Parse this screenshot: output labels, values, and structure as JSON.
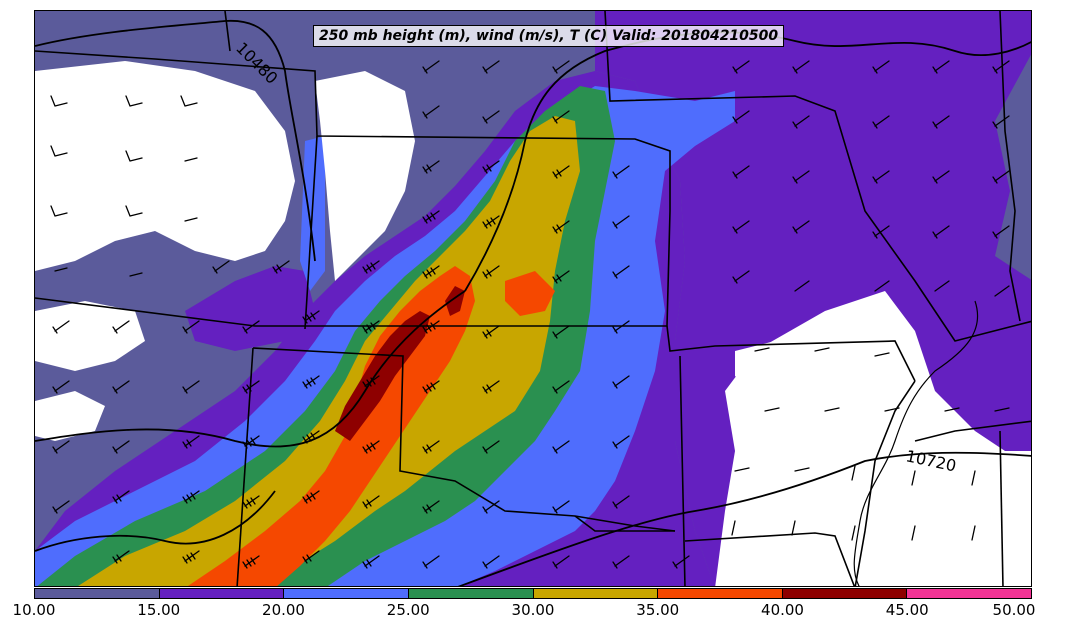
{
  "title": "250 mb height (m), wind (m/s), T (C) Valid: 201804210500",
  "contour_labels": [
    "10480",
    "10720"
  ],
  "colorbar": {
    "ticks": [
      "10.00",
      "15.00",
      "20.00",
      "25.00",
      "30.00",
      "35.00",
      "40.00",
      "45.00",
      "50.00"
    ],
    "colors": [
      "#5b5b9b",
      "#6420c0",
      "#4f6dfd",
      "#2a9050",
      "#c8a600",
      "#f54800",
      "#8e0000",
      "#f23495"
    ]
  },
  "fill_colors": {
    "below_10": "#ffffff",
    "c10_15": "#5b5b9b",
    "c15_20": "#6420c0",
    "c20_25": "#4f6dfd",
    "c25_30": "#2a9050",
    "c30_35": "#c8a600",
    "c35_40": "#f54800",
    "c40_45": "#8e0000"
  }
}
